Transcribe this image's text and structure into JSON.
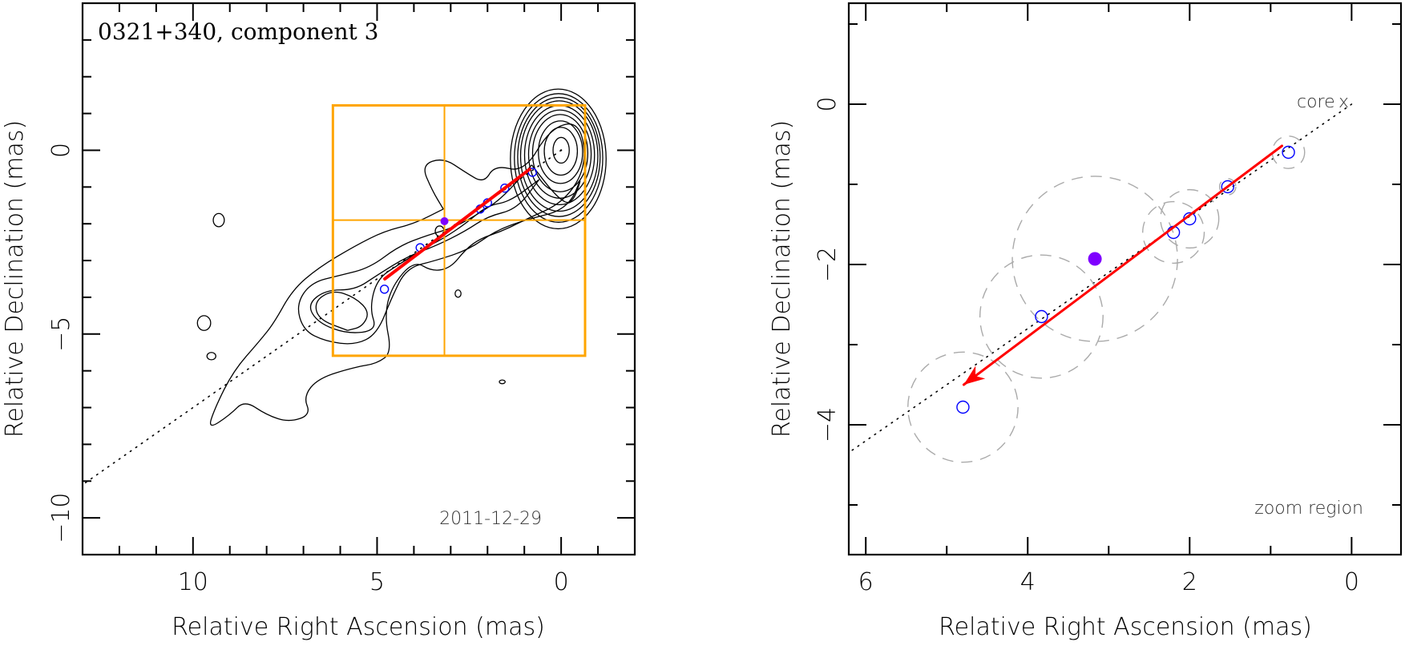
{
  "chart_data": [
    {
      "id": "left",
      "type": "scatter",
      "subtype": "contour-map",
      "title": "0321+340, component 3",
      "annotation_date": "2011-12-29",
      "xlabel": "Relative Right Ascension (mas)",
      "ylabel": "Relative Declination (mas)",
      "xlim": [
        13,
        -2
      ],
      "ylim": [
        -11,
        4
      ],
      "x_major_ticks": [
        10,
        5,
        0
      ],
      "x_tick_labels": [
        "10",
        "5",
        "0"
      ],
      "x_minor_step": 1,
      "y_major_ticks": [
        0,
        -5,
        -10
      ],
      "y_tick_labels": [
        "0",
        "−5",
        "−10"
      ],
      "y_minor_step": 1,
      "grid": false,
      "core": {
        "x": 0,
        "y": 0
      },
      "core_contours_semi_axes": [
        [
          0.22,
          0.35
        ],
        [
          0.45,
          0.65
        ],
        [
          0.6,
          0.85
        ],
        [
          0.75,
          1.05
        ],
        [
          0.85,
          1.2
        ],
        [
          0.95,
          1.35
        ],
        [
          1.05,
          1.5
        ],
        [
          1.12,
          1.62
        ],
        [
          1.2,
          1.75
        ],
        [
          1.3,
          1.9
        ]
      ],
      "jet_contours": [
        [
          [
            3.2,
            -1.6
          ],
          [
            3.5,
            -1.1
          ],
          [
            3.8,
            -0.4
          ],
          [
            3.2,
            -0.2
          ],
          [
            2.6,
            -0.6
          ],
          [
            2.1,
            -0.9
          ],
          [
            1.8,
            -0.4
          ],
          [
            1.0,
            -0.6
          ],
          [
            0.3,
            0.6
          ],
          [
            -0.5,
            0.8
          ],
          [
            -0.7,
            -0.4
          ],
          [
            -0.1,
            -1.4
          ],
          [
            1.0,
            -1.9
          ],
          [
            1.6,
            -2.2
          ],
          [
            2.2,
            -2.4
          ],
          [
            2.6,
            -2.7
          ],
          [
            3.0,
            -3.2
          ],
          [
            3.5,
            -3.3
          ],
          [
            4.0,
            -3.0
          ],
          [
            4.6,
            -3.7
          ],
          [
            4.8,
            -4.5
          ],
          [
            4.6,
            -5.5
          ],
          [
            5.0,
            -5.8
          ],
          [
            5.6,
            -5.9
          ],
          [
            6.6,
            -6.2
          ],
          [
            7.0,
            -6.7
          ],
          [
            6.8,
            -7.2
          ],
          [
            7.4,
            -7.4
          ],
          [
            8.0,
            -7.2
          ],
          [
            8.6,
            -6.8
          ],
          [
            9.0,
            -7.2
          ],
          [
            9.6,
            -7.6
          ],
          [
            9.4,
            -7.0
          ],
          [
            8.9,
            -6.0
          ],
          [
            8.2,
            -5.2
          ],
          [
            7.8,
            -4.7
          ],
          [
            7.3,
            -3.8
          ],
          [
            6.6,
            -3.2
          ],
          [
            5.6,
            -2.6
          ],
          [
            4.8,
            -2.2
          ],
          [
            4.0,
            -2.0
          ],
          [
            3.2,
            -1.6
          ]
        ],
        [
          [
            0.8,
            -0.4
          ],
          [
            0.1,
            -1.3
          ],
          [
            -0.3,
            -1.5
          ],
          [
            -0.6,
            -0.6
          ],
          [
            -0.2,
            -1.6
          ],
          [
            1.0,
            -1.9
          ],
          [
            1.8,
            -2.2
          ],
          [
            2.5,
            -2.7
          ],
          [
            3.4,
            -3.0
          ],
          [
            4.2,
            -3.2
          ],
          [
            4.6,
            -4.0
          ],
          [
            5.0,
            -5.0
          ],
          [
            5.6,
            -5.3
          ],
          [
            6.4,
            -5.2
          ],
          [
            7.0,
            -4.9
          ],
          [
            7.2,
            -4.2
          ],
          [
            6.8,
            -3.6
          ],
          [
            6.0,
            -3.4
          ],
          [
            5.2,
            -3.2
          ],
          [
            4.4,
            -2.6
          ],
          [
            3.6,
            -2.3
          ],
          [
            2.9,
            -2.1
          ],
          [
            2.2,
            -1.7
          ],
          [
            1.6,
            -1.3
          ],
          [
            0.8,
            -0.4
          ]
        ],
        [
          [
            0.6,
            -0.8
          ],
          [
            1.4,
            -1.4
          ],
          [
            2.0,
            -1.5
          ],
          [
            2.6,
            -2.0
          ],
          [
            3.2,
            -2.4
          ],
          [
            3.6,
            -2.6
          ],
          [
            4.4,
            -3.1
          ],
          [
            5.0,
            -3.5
          ],
          [
            5.2,
            -4.3
          ],
          [
            5.0,
            -4.9
          ],
          [
            5.8,
            -5.0
          ],
          [
            6.6,
            -4.7
          ],
          [
            6.9,
            -4.2
          ],
          [
            6.4,
            -3.8
          ],
          [
            5.6,
            -3.8
          ],
          [
            5.0,
            -3.4
          ],
          [
            4.2,
            -2.9
          ],
          [
            3.4,
            -2.6
          ],
          [
            2.6,
            -2.2
          ],
          [
            2.0,
            -1.8
          ],
          [
            1.2,
            -1.6
          ],
          [
            0.6,
            -0.8
          ]
        ],
        [
          [
            5.8,
            -4.9
          ],
          [
            6.6,
            -4.6
          ],
          [
            6.7,
            -4.1
          ],
          [
            6.2,
            -3.8
          ],
          [
            5.6,
            -4.0
          ],
          [
            5.2,
            -4.4
          ],
          [
            5.4,
            -4.8
          ],
          [
            5.8,
            -4.9
          ]
        ]
      ],
      "isolated_contours": [
        {
          "x": 9.7,
          "y": -4.7,
          "rx": 0.18,
          "ry": 0.2
        },
        {
          "x": 9.5,
          "y": -5.6,
          "rx": 0.12,
          "ry": 0.1
        },
        {
          "x": 9.3,
          "y": -1.9,
          "rx": 0.15,
          "ry": 0.18
        },
        {
          "x": 2.8,
          "y": -3.9,
          "rx": 0.08,
          "ry": 0.1
        },
        {
          "x": 1.6,
          "y": -6.3,
          "rx": 0.08,
          "ry": 0.05
        },
        {
          "x": 3.3,
          "y": -2.2,
          "rx": 0.12,
          "ry": 0.14
        }
      ],
      "zoom_box": {
        "x_range": [
          6.2,
          -0.65
        ],
        "y_range": [
          1.22,
          -5.59
        ],
        "crosshair": {
          "x": 3.17,
          "y": -1.9
        }
      },
      "components": [
        {
          "x": 0.78,
          "y": -0.6
        },
        {
          "x": 1.53,
          "y": -1.03
        },
        {
          "x": 2.0,
          "y": -1.43
        },
        {
          "x": 2.2,
          "y": -1.6
        },
        {
          "x": 3.83,
          "y": -2.65
        },
        {
          "x": 4.8,
          "y": -3.78
        }
      ],
      "highlight_component": {
        "x": 3.17,
        "y": -1.93
      },
      "motion_vector": {
        "from": {
          "x": 0.86,
          "y": -0.52
        },
        "to": {
          "x": 4.79,
          "y": -3.5
        }
      },
      "ridge_line_slope": -0.7
    },
    {
      "id": "right",
      "type": "scatter",
      "title": "",
      "annotation_core": "core",
      "annotation_region": "zoom region",
      "xlabel": "Relative Right Ascension (mas)",
      "ylabel": "Relative Declination (mas)",
      "xlim": [
        6.21,
        -0.61
      ],
      "ylim": [
        -5.62,
        1.26
      ],
      "x_major_ticks": [
        6,
        4,
        2,
        0
      ],
      "x_tick_labels": [
        "6",
        "4",
        "2",
        "0"
      ],
      "x_minor_step": 1,
      "y_major_ticks": [
        0,
        -2,
        -4
      ],
      "y_tick_labels": [
        "0",
        "−2",
        "−4"
      ],
      "y_minor_step": 1,
      "grid": false,
      "core": {
        "x": 0,
        "y": 0
      },
      "components": [
        {
          "x": 0.78,
          "y": -0.6,
          "size": 0.2
        },
        {
          "x": 1.53,
          "y": -1.03,
          "size": 0.1
        },
        {
          "x": 2.0,
          "y": -1.43,
          "size": 0.36
        },
        {
          "x": 2.2,
          "y": -1.6,
          "size": 0.38
        },
        {
          "x": 3.83,
          "y": -2.65,
          "size": 0.76
        },
        {
          "x": 4.8,
          "y": -3.78,
          "size": 0.68
        }
      ],
      "highlight_component": {
        "x": 3.17,
        "y": -1.93,
        "size": 1.02
      },
      "motion_vector": {
        "from": {
          "x": 0.86,
          "y": -0.52
        },
        "to": {
          "x": 4.79,
          "y": -3.5
        }
      },
      "ridge_line_slope": -0.7
    }
  ],
  "colors": {
    "contour": "#000000",
    "zoom_box": "#ffa500",
    "component": "#0000ff",
    "highlight": "#7f00ff",
    "motion_vector": "#ff0000",
    "component_size": "#aaaaaa"
  }
}
